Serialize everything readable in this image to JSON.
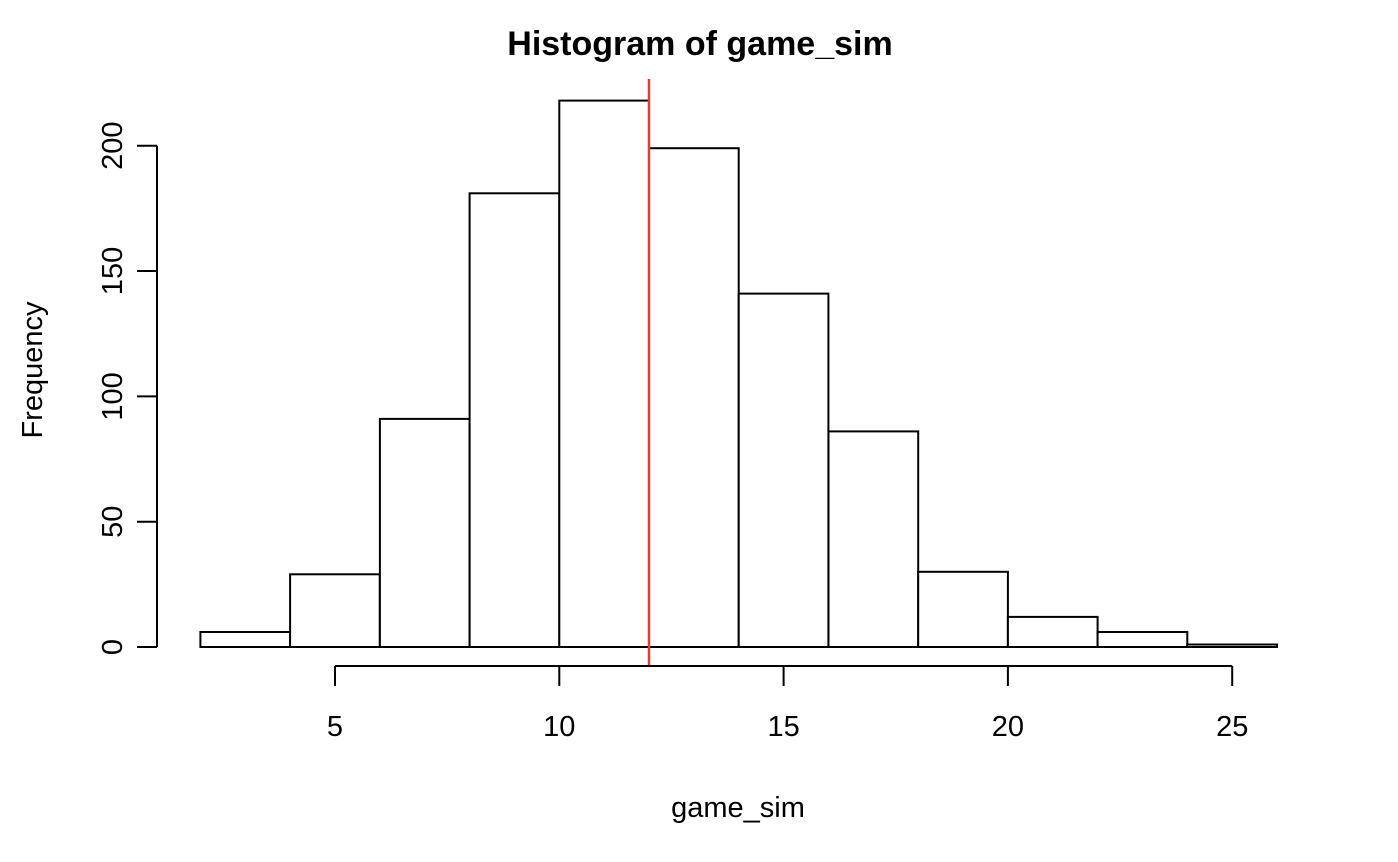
{
  "figure": {
    "background": "#ffffff"
  },
  "title": {
    "text": "Histogram of game_sim"
  },
  "x_axis": {
    "label": "game_sim",
    "ticks": [
      "5",
      "10",
      "15",
      "20",
      "25"
    ]
  },
  "y_axis": {
    "label": "Frequency",
    "ticks": [
      "0",
      "50",
      "100",
      "150",
      "200"
    ]
  },
  "reference_line": {
    "x": 12,
    "color": "#e0402e"
  },
  "chart_data": {
    "type": "bar",
    "subtype": "histogram",
    "title": "Histogram of game_sim",
    "xlabel": "game_sim",
    "ylabel": "Frequency",
    "bin_edges": [
      2,
      4,
      6,
      8,
      10,
      12,
      14,
      16,
      18,
      20,
      22,
      24,
      26
    ],
    "categories": [
      "2-4",
      "4-6",
      "6-8",
      "8-10",
      "10-12",
      "12-14",
      "14-16",
      "16-18",
      "18-20",
      "20-22",
      "22-24",
      "24-26"
    ],
    "values": [
      6,
      29,
      91,
      181,
      218,
      199,
      141,
      86,
      30,
      12,
      6,
      1
    ],
    "x_ticks": [
      5,
      10,
      15,
      20,
      25
    ],
    "y_ticks": [
      0,
      50,
      100,
      150,
      200
    ],
    "xlim": [
      2,
      26
    ],
    "ylim": [
      0,
      218
    ],
    "grid": false,
    "legend": "none",
    "bar_fill": "#ffffff",
    "bar_stroke": "#000000",
    "axis_color": "#000000",
    "reference_line_x": 12,
    "reference_line_color": "#e0402e"
  }
}
